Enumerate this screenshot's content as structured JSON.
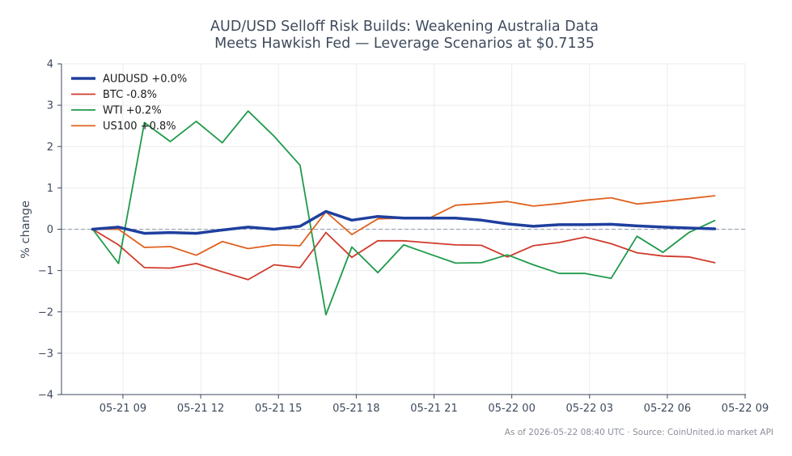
{
  "chart_data": {
    "type": "line",
    "title": "AUD/USD Selloff Risk Builds: Weakening Australia Data\nMeets Hawkish Fed — Leverage Scenarios at $0.7135",
    "ylabel": "% change",
    "xlabel": "",
    "ylim": [
      -4,
      4
    ],
    "yticks": [
      4,
      3,
      2,
      1,
      0,
      -1,
      -2,
      -3,
      -4
    ],
    "ytick_labels": [
      "4",
      "3",
      "2",
      "1",
      "0",
      "−1",
      "−2",
      "−3",
      "−4"
    ],
    "x_hours": [
      0,
      1,
      2,
      3,
      4,
      5,
      6,
      7,
      8,
      9,
      10,
      11,
      12,
      13,
      14,
      15,
      16,
      17,
      18,
      19,
      20,
      21,
      22,
      23,
      24
    ],
    "x_start": "2026-05-21 07:50",
    "xlim": [
      -1.2,
      25.2
    ],
    "xticks": [
      1.17,
      4.17,
      7.17,
      10.17,
      13.17,
      16.17,
      19.17,
      22.17,
      25.17
    ],
    "xtick_labels": [
      "05-21 09",
      "05-21 12",
      "05-21 15",
      "05-21 18",
      "05-21 21",
      "05-22 00",
      "05-22 03",
      "05-22 06",
      "05-22 09"
    ],
    "grid": true,
    "legend_position": "upper-left",
    "baseline": 0,
    "series": [
      {
        "name": "AUDUSD +0.0%",
        "color": "#1f3f9e",
        "width": 3.5,
        "values": [
          0.0,
          0.05,
          -0.1,
          -0.08,
          -0.1,
          -0.02,
          0.05,
          0.0,
          0.07,
          0.43,
          0.22,
          0.31,
          0.27,
          0.27,
          0.27,
          0.22,
          0.13,
          0.07,
          0.11,
          0.11,
          0.12,
          0.08,
          0.05,
          0.03,
          0.01
        ]
      },
      {
        "name": "BTC -0.8%",
        "color": "#d03a2b",
        "width": 1.8,
        "values": [
          0.0,
          -0.38,
          -0.93,
          -0.94,
          -0.83,
          -1.03,
          -1.22,
          -0.86,
          -0.93,
          -0.08,
          -0.68,
          -0.28,
          -0.28,
          -0.33,
          -0.38,
          -0.39,
          -0.67,
          -0.4,
          -0.32,
          -0.19,
          -0.35,
          -0.57,
          -0.65,
          -0.67,
          -0.81
        ]
      },
      {
        "name": "WTI +0.2%",
        "color": "#1e9a4a",
        "width": 1.8,
        "values": [
          0.0,
          -0.83,
          2.58,
          2.12,
          2.61,
          2.09,
          2.86,
          2.25,
          1.55,
          -2.07,
          -0.43,
          -1.05,
          -0.38,
          -0.6,
          -0.82,
          -0.81,
          -0.62,
          -0.86,
          -1.07,
          -1.07,
          -1.19,
          -0.17,
          -0.56,
          -0.08,
          0.21
        ]
      },
      {
        "name": "US100 +0.8%",
        "color": "#e0611e",
        "width": 1.8,
        "values": [
          0.0,
          0.0,
          -0.44,
          -0.42,
          -0.63,
          -0.3,
          -0.47,
          -0.38,
          -0.4,
          0.42,
          -0.13,
          0.25,
          0.27,
          0.27,
          0.58,
          0.62,
          0.67,
          0.56,
          0.62,
          0.7,
          0.76,
          0.61,
          0.67,
          0.74,
          0.81
        ]
      }
    ],
    "footer": "As of 2026-05-22 08:40 UTC · Source: CoinUnited.io market API"
  },
  "colors": {
    "text": "#3e4a5c",
    "axis": "#3e4a5c",
    "grid": "#ececec",
    "baseline": "#8d9bb0"
  }
}
